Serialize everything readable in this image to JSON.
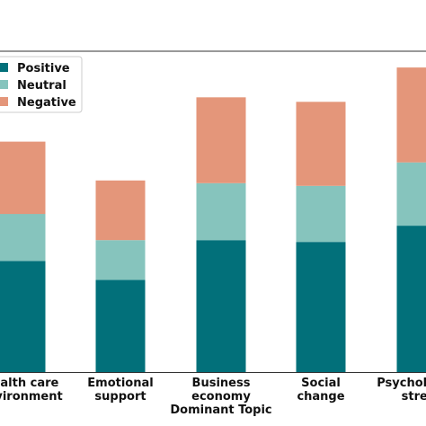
{
  "chart_data": {
    "type": "bar",
    "stacked": true,
    "xlabel": "Dominant Topic",
    "ylabel": "",
    "title": "",
    "categories": [
      [
        "Health care",
        "environment"
      ],
      [
        "Emotional",
        "support"
      ],
      [
        "Business",
        "economy"
      ],
      [
        "Social",
        "change"
      ],
      [
        "Psychological",
        "stress"
      ]
    ],
    "series": [
      {
        "name": "Positive",
        "color": "#02707a",
        "values": [
          123,
          102,
          146,
          144,
          162
        ]
      },
      {
        "name": "Neutral",
        "color": "#86c4bd",
        "values": [
          52,
          44,
          63,
          62,
          70
        ]
      },
      {
        "name": "Negative",
        "color": "#e4967a",
        "values": [
          80,
          66,
          95,
          93,
          105
        ]
      }
    ],
    "ylim": [
      0,
      355
    ],
    "legend_position": "top-left",
    "grid": false
  }
}
